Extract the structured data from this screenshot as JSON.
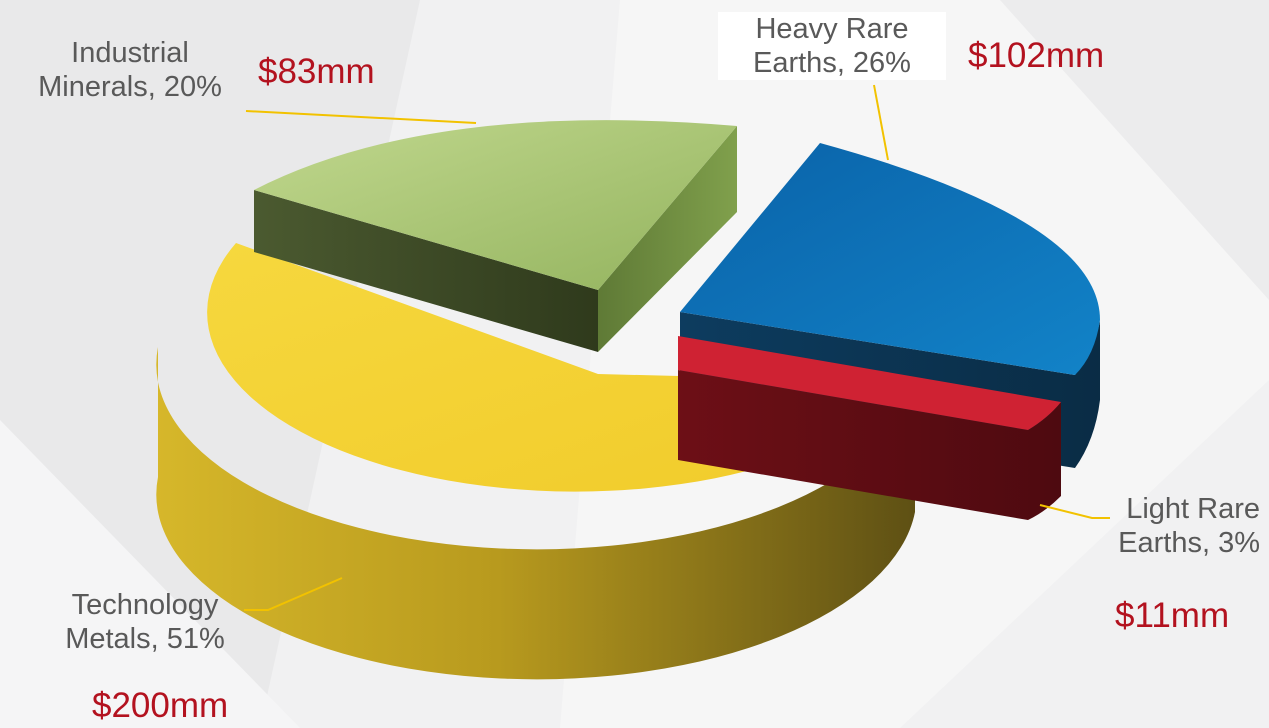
{
  "colors": {
    "label_text": "#595959",
    "value_text": "#b3121f",
    "leader_line": "#f2c200"
  },
  "chart_data": {
    "type": "pie",
    "style": "3d-exploded",
    "title": "",
    "legend": "none",
    "slices": [
      {
        "category": "Heavy Rare Earths",
        "percent": 26,
        "value": 102,
        "percent_label": "Heavy Rare\nEarths, 26%",
        "value_label": "$102mm",
        "color": "#1579bd"
      },
      {
        "category": "Light Rare Earths",
        "percent": 3,
        "value": 11,
        "percent_label": "Light Rare\nEarths, 3%",
        "value_label": "$11mm",
        "color": "#cf2233"
      },
      {
        "category": "Technology Metals",
        "percent": 51,
        "value": 200,
        "percent_label": "Technology\nMetals, 51%",
        "value_label": "$200mm",
        "color": "#f4d132"
      },
      {
        "category": "Industrial Minerals",
        "percent": 20,
        "value": 83,
        "percent_label": "Industrial\nMinerals, 20%",
        "value_label": "$83mm",
        "color": "#a9c676"
      }
    ]
  }
}
